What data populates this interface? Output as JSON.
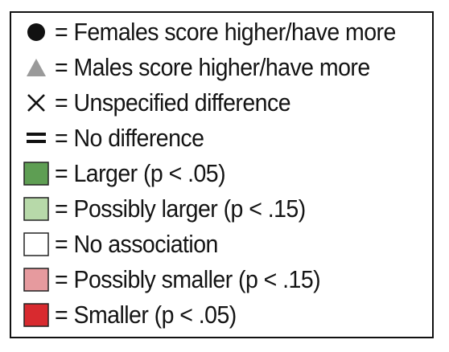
{
  "legend": {
    "items": [
      {
        "symbol": "filled-circle-icon",
        "color": "#111111",
        "text": "= Females score higher/have more"
      },
      {
        "symbol": "triangle-icon",
        "color": "#9a9a9a",
        "text": "= Males score higher/have more"
      },
      {
        "symbol": "x-mark-icon",
        "color": "#111111",
        "text": "= Unspecified difference"
      },
      {
        "symbol": "equals-icon",
        "color": "#111111",
        "text": "= No difference"
      },
      {
        "symbol": "color-swatch-icon",
        "color": "#5e9e53",
        "text": "= Larger (p < .05)"
      },
      {
        "symbol": "color-swatch-icon",
        "color": "#b7d9a9",
        "text": "= Possibly larger (p < .15)"
      },
      {
        "symbol": "color-swatch-icon",
        "color": "#ffffff",
        "text": "= No association"
      },
      {
        "symbol": "color-swatch-icon",
        "color": "#e69a9e",
        "text": "= Possibly smaller (p < .15)"
      },
      {
        "symbol": "color-swatch-icon",
        "color": "#d82a2f",
        "text": "= Smaller (p < .05)"
      }
    ]
  }
}
